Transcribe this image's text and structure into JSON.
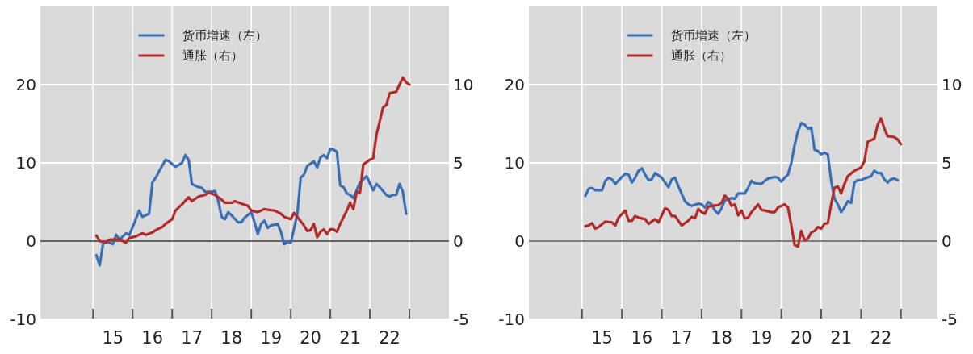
{
  "chart_data": [
    {
      "type": "line",
      "xlim": [
        "2013-09",
        "2024-01"
      ],
      "ylim": [
        -10,
        30
      ],
      "y2lim": [
        -5,
        15
      ],
      "xticks": [
        {
          "value": "2015-01",
          "label": null
        },
        {
          "value": "2015-07",
          "label": "15"
        },
        {
          "value": "2016-01",
          "label": null
        },
        {
          "value": "2016-07",
          "label": "16"
        },
        {
          "value": "2017-01",
          "label": null
        },
        {
          "value": "2017-07",
          "label": "17"
        },
        {
          "value": "2018-01",
          "label": null
        },
        {
          "value": "2018-07",
          "label": "18"
        },
        {
          "value": "2019-01",
          "label": null
        },
        {
          "value": "2019-07",
          "label": "19"
        },
        {
          "value": "2020-01",
          "label": null
        },
        {
          "value": "2020-07",
          "label": "20"
        },
        {
          "value": "2021-01",
          "label": null
        },
        {
          "value": "2021-07",
          "label": "21"
        },
        {
          "value": "2022-01",
          "label": null
        },
        {
          "value": "2022-07",
          "label": "22"
        },
        {
          "value": "2023-01",
          "label": null
        }
      ],
      "yticks": [
        -10,
        0,
        10,
        20
      ],
      "y2ticks": [
        -5,
        0,
        5,
        10
      ],
      "grid": true,
      "legend": "top",
      "ref_lines": [
        {
          "axis": "y",
          "value": 0,
          "color": "#333333"
        }
      ],
      "series": [
        {
          "name": "货币增速（左）",
          "color": "#3a6fb5",
          "x": [
            "2015-02",
            "2015-03",
            "2015-04",
            "2015-05",
            "2015-07",
            "2015-08",
            "2015-09",
            "2015-11",
            "2015-12",
            "2016-01",
            "2016-03",
            "2016-04",
            "2016-06",
            "2016-07",
            "2016-08",
            "2016-09",
            "2016-11",
            "2016-12",
            "2017-02",
            "2017-04",
            "2017-05",
            "2017-06",
            "2017-07",
            "2017-09",
            "2017-10",
            "2017-11",
            "2018-01",
            "2018-02",
            "2018-03",
            "2018-04",
            "2018-05",
            "2018-06",
            "2018-07",
            "2018-09",
            "2018-10",
            "2018-11",
            "2019-01",
            "2019-02",
            "2019-03",
            "2019-04",
            "2019-05",
            "2019-06",
            "2019-07",
            "2019-09",
            "2019-10",
            "2019-11",
            "2019-12",
            "2020-01",
            "2020-02",
            "2020-03",
            "2020-04",
            "2020-05",
            "2020-06",
            "2020-08",
            "2020-09",
            "2020-10",
            "2020-11",
            "2020-12",
            "2021-01",
            "2021-02",
            "2021-03",
            "2021-04",
            "2021-05",
            "2021-06",
            "2021-07",
            "2021-08",
            "2021-09",
            "2021-10",
            "2021-12",
            "2022-01",
            "2022-02",
            "2022-03",
            "2022-04",
            "2022-06",
            "2022-07",
            "2022-08",
            "2022-09",
            "2022-10",
            "2022-11",
            "2022-12"
          ],
          "values": [
            -1.8,
            -3.1,
            -0.4,
            0,
            -0.4,
            0.8,
            0.2,
            1.0,
            0.8,
            1.8,
            3.9,
            3.1,
            3.5,
            7.5,
            8.1,
            8.9,
            10.4,
            10.2,
            9.5,
            10.0,
            11.0,
            10.4,
            7.3,
            6.9,
            6.8,
            6.3,
            6.3,
            6.4,
            5.1,
            3.1,
            2.8,
            3.7,
            3.3,
            2.4,
            2.4,
            3.0,
            3.7,
            2.4,
            0.9,
            2.2,
            2.6,
            1.7,
            2.0,
            2.2,
            1.2,
            -0.4,
            -0.1,
            -0.2,
            1.6,
            3.5,
            8.1,
            8.5,
            9.6,
            10.2,
            9.4,
            10.7,
            11.0,
            10.6,
            11.8,
            11.7,
            11.4,
            7.1,
            6.9,
            6.1,
            5.9,
            5.5,
            6.5,
            7.5,
            8.3,
            7.4,
            6.5,
            7.3,
            6.9,
            5.9,
            5.7,
            5.9,
            5.9,
            7.3,
            6.3,
            3.5
          ]
        },
        {
          "name": "通胀（右）",
          "color": "#b22a2a",
          "axis": "y2",
          "x": [
            "2015-02",
            "2015-03",
            "2015-05",
            "2015-06",
            "2015-08",
            "2015-09",
            "2015-11",
            "2015-12",
            "2016-02",
            "2016-04",
            "2016-05",
            "2016-07",
            "2016-08",
            "2016-10",
            "2016-11",
            "2017-01",
            "2017-02",
            "2017-04",
            "2017-06",
            "2017-07",
            "2017-09",
            "2017-11",
            "2017-12",
            "2018-02",
            "2018-04",
            "2018-05",
            "2018-07",
            "2018-08",
            "2018-10",
            "2018-12",
            "2019-01",
            "2019-03",
            "2019-05",
            "2019-06",
            "2019-08",
            "2019-10",
            "2019-11",
            "2020-01",
            "2020-02",
            "2020-03",
            "2020-05",
            "2020-06",
            "2020-07",
            "2020-08",
            "2020-09",
            "2020-10",
            "2020-11",
            "2020-12",
            "2021-01",
            "2021-02",
            "2021-03",
            "2021-04",
            "2021-06",
            "2021-07",
            "2021-08",
            "2021-09",
            "2021-10",
            "2021-11",
            "2022-01",
            "2022-02",
            "2022-03",
            "2022-05",
            "2022-06",
            "2022-07",
            "2022-09",
            "2022-11",
            "2022-12",
            "2023-01"
          ],
          "values": [
            0.35,
            0,
            -0.1,
            0.1,
            0.1,
            0.1,
            -0.1,
            0.2,
            0.3,
            0.5,
            0.4,
            0.55,
            0.7,
            0.9,
            1.1,
            1.4,
            1.95,
            2.35,
            2.8,
            2.55,
            2.85,
            2.95,
            3.1,
            2.95,
            2.65,
            2.45,
            2.45,
            2.55,
            2.4,
            2.25,
            1.95,
            1.85,
            2.05,
            2.0,
            1.95,
            1.75,
            1.55,
            1.4,
            1.8,
            1.55,
            1.0,
            0.65,
            0.7,
            1.1,
            0.25,
            0.6,
            0.75,
            0.45,
            0.75,
            0.75,
            0.6,
            1.1,
            1.95,
            2.45,
            2.05,
            3.15,
            3.1,
            4.9,
            5.2,
            5.3,
            6.8,
            8.55,
            8.7,
            9.45,
            9.55,
            10.45,
            10.15,
            10.0
          ]
        }
      ]
    },
    {
      "type": "line",
      "xlim": [
        "2013-09",
        "2023-12"
      ],
      "ylim": [
        -10,
        30
      ],
      "y2lim": [
        -5,
        15
      ],
      "xticks": [
        {
          "value": "2015-01",
          "label": null
        },
        {
          "value": "2015-07",
          "label": "15"
        },
        {
          "value": "2016-01",
          "label": null
        },
        {
          "value": "2016-07",
          "label": "16"
        },
        {
          "value": "2017-01",
          "label": null
        },
        {
          "value": "2017-07",
          "label": "17"
        },
        {
          "value": "2018-01",
          "label": null
        },
        {
          "value": "2018-07",
          "label": "18"
        },
        {
          "value": "2019-01",
          "label": null
        },
        {
          "value": "2019-07",
          "label": "19"
        },
        {
          "value": "2020-01",
          "label": null
        },
        {
          "value": "2020-07",
          "label": "20"
        },
        {
          "value": "2021-01",
          "label": null
        },
        {
          "value": "2021-07",
          "label": "21"
        },
        {
          "value": "2022-01",
          "label": null
        },
        {
          "value": "2022-07",
          "label": "22"
        },
        {
          "value": "2023-01",
          "label": null
        }
      ],
      "yticks": [
        -10,
        0,
        10,
        20
      ],
      "y2ticks": [
        -5,
        0,
        5,
        10
      ],
      "grid": true,
      "legend": "top",
      "ref_lines": [
        {
          "axis": "y",
          "value": 0,
          "color": "#555555"
        }
      ],
      "series": [
        {
          "name": "货币增速（左）",
          "color": "#3a6fb5",
          "x": [
            "2015-02",
            "2015-03",
            "2015-04",
            "2015-05",
            "2015-07",
            "2015-08",
            "2015-09",
            "2015-10",
            "2015-11",
            "2016-01",
            "2016-02",
            "2016-03",
            "2016-04",
            "2016-05",
            "2016-06",
            "2016-07",
            "2016-08",
            "2016-09",
            "2016-10",
            "2016-11",
            "2017-01",
            "2017-02",
            "2017-03",
            "2017-04",
            "2017-05",
            "2017-06",
            "2017-08",
            "2017-09",
            "2017-10",
            "2017-12",
            "2018-01",
            "2018-02",
            "2018-03",
            "2018-04",
            "2018-05",
            "2018-06",
            "2018-07",
            "2018-08",
            "2018-10",
            "2018-11",
            "2018-12",
            "2019-02",
            "2019-03",
            "2019-04",
            "2019-05",
            "2019-07",
            "2019-08",
            "2019-09",
            "2019-11",
            "2019-12",
            "2020-01",
            "2020-02",
            "2020-03",
            "2020-04",
            "2020-05",
            "2020-06",
            "2020-07",
            "2020-08",
            "2020-09",
            "2020-10",
            "2020-11",
            "2020-12",
            "2021-01",
            "2021-02",
            "2021-03",
            "2021-04",
            "2021-05",
            "2021-06",
            "2021-07",
            "2021-08",
            "2021-09",
            "2021-10",
            "2021-11",
            "2021-12",
            "2022-01",
            "2022-02",
            "2022-04",
            "2022-05",
            "2022-06",
            "2022-07",
            "2022-08",
            "2022-09",
            "2022-10",
            "2022-11",
            "2022-12"
          ],
          "values": [
            5.8,
            6.7,
            6.8,
            6.5,
            6.5,
            7.7,
            8.1,
            7.9,
            7.3,
            8.2,
            8.6,
            8.5,
            7.5,
            8.1,
            9.0,
            9.3,
            8.5,
            7.8,
            7.9,
            8.7,
            8.1,
            7.5,
            6.9,
            7.9,
            8.1,
            7.0,
            5.1,
            4.7,
            4.5,
            4.8,
            4.7,
            4.3,
            5.0,
            4.7,
            3.9,
            3.5,
            4.2,
            5.2,
            5.5,
            5.4,
            6.1,
            6.1,
            6.8,
            7.7,
            7.4,
            7.3,
            7.7,
            8.0,
            8.2,
            8.1,
            7.6,
            8.1,
            8.5,
            10.0,
            12.3,
            14.0,
            15.1,
            14.9,
            14.4,
            14.5,
            11.7,
            11.5,
            11.1,
            11.3,
            11.1,
            7.7,
            5.4,
            4.7,
            3.7,
            4.3,
            5.1,
            4.9,
            7.5,
            7.8,
            7.8,
            8.0,
            8.3,
            9.0,
            8.7,
            8.7,
            7.9,
            7.5,
            7.9,
            8.0,
            7.8
          ]
        },
        {
          "name": "通胀（右）",
          "color": "#b22a2a",
          "axis": "y2",
          "x": [
            "2015-02",
            "2015-03",
            "2015-04",
            "2015-05",
            "2015-06",
            "2015-08",
            "2015-10",
            "2015-11",
            "2015-12",
            "2016-02",
            "2016-03",
            "2016-04",
            "2016-05",
            "2016-06",
            "2016-08",
            "2016-09",
            "2016-11",
            "2016-12",
            "2017-02",
            "2017-03",
            "2017-04",
            "2017-05",
            "2017-07",
            "2017-09",
            "2017-10",
            "2017-11",
            "2017-12",
            "2018-01",
            "2018-02",
            "2018-03",
            "2018-04",
            "2018-06",
            "2018-07",
            "2018-08",
            "2018-09",
            "2018-10",
            "2018-11",
            "2018-12",
            "2019-01",
            "2019-02",
            "2019-03",
            "2019-04",
            "2019-06",
            "2019-07",
            "2019-08",
            "2019-10",
            "2019-11",
            "2019-12",
            "2020-02",
            "2020-03",
            "2020-04",
            "2020-05",
            "2020-06",
            "2020-07",
            "2020-08",
            "2020-09",
            "2020-10",
            "2020-11",
            "2020-12",
            "2021-01",
            "2021-02",
            "2021-03",
            "2021-04",
            "2021-05",
            "2021-06",
            "2021-07",
            "2021-08",
            "2021-09",
            "2021-11",
            "2022-01",
            "2022-02",
            "2022-03",
            "2022-05",
            "2022-06",
            "2022-07",
            "2022-08",
            "2022-09",
            "2022-11",
            "2022-12",
            "2023-01"
          ],
          "values": [
            0.95,
            1.0,
            1.15,
            0.8,
            0.9,
            1.25,
            1.2,
            1.0,
            1.5,
            1.95,
            1.3,
            1.3,
            1.6,
            1.5,
            1.4,
            1.1,
            1.4,
            1.2,
            2.1,
            2.0,
            1.6,
            1.6,
            1.0,
            1.3,
            1.55,
            1.45,
            2.05,
            1.85,
            1.75,
            2.2,
            2.25,
            2.3,
            2.45,
            2.9,
            2.7,
            2.25,
            2.35,
            1.65,
            1.95,
            1.45,
            1.5,
            1.85,
            2.35,
            2.0,
            1.95,
            1.85,
            1.85,
            2.15,
            2.35,
            2.15,
            1.0,
            -0.25,
            -0.35,
            0.65,
            0.05,
            0.15,
            0.55,
            0.65,
            0.9,
            0.8,
            1.1,
            1.15,
            2.35,
            3.4,
            3.5,
            3.05,
            3.65,
            4.15,
            4.5,
            4.7,
            5.1,
            6.35,
            6.55,
            7.45,
            7.85,
            7.2,
            6.7,
            6.65,
            6.5,
            6.2
          ]
        }
      ]
    }
  ]
}
